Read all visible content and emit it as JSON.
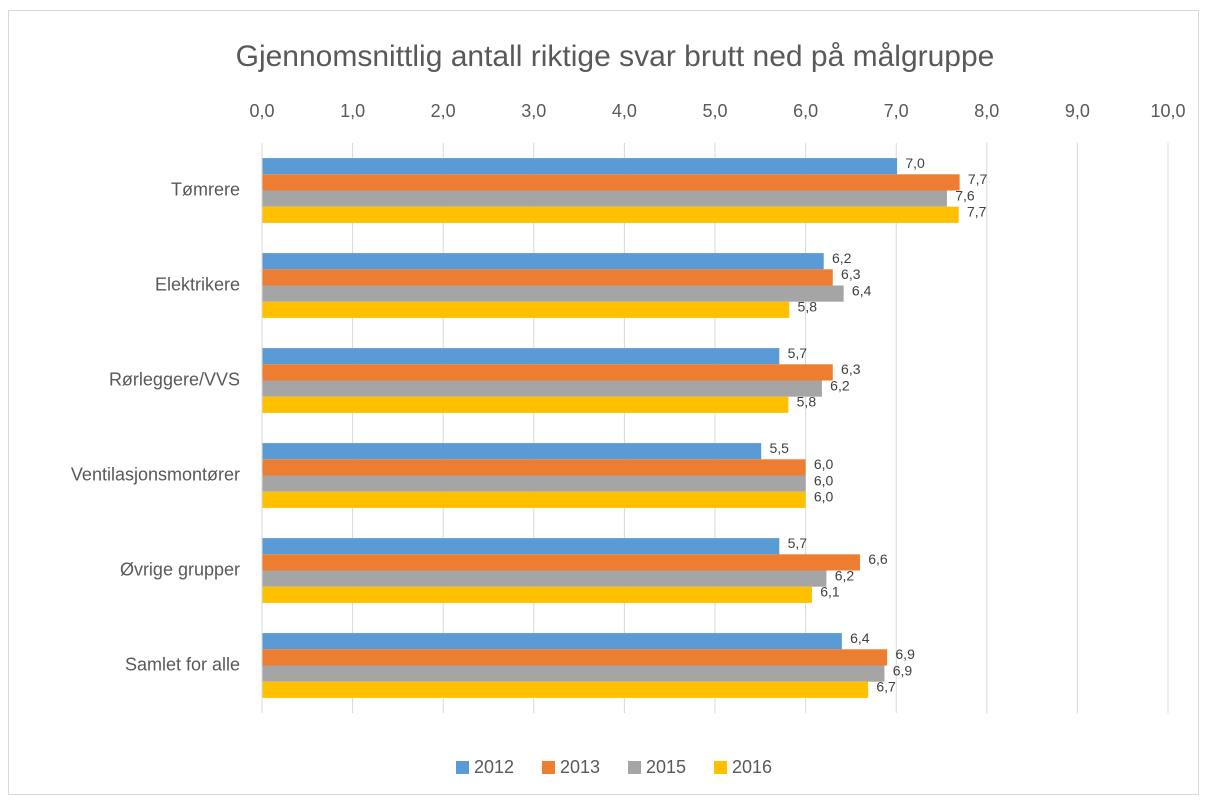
{
  "chart_data": {
    "type": "bar",
    "orientation": "horizontal",
    "title": "Gjennomsnittlig antall riktige svar brutt ned på målgruppe",
    "categories": [
      "Tømrere",
      "Elektrikere",
      "Rørleggere/VVS",
      "Ventilasjonsmontører",
      "Øvrige grupper",
      "Samlet for alle"
    ],
    "series": [
      {
        "name": "2012",
        "color": "#5b9bd5",
        "values": [
          7.01,
          6.2,
          5.71,
          5.51,
          5.71,
          6.4
        ],
        "value_labels": [
          "7,0",
          "6,2",
          "5,7",
          "5,5",
          "5,7",
          "6,4"
        ]
      },
      {
        "name": "2013",
        "color": "#ed7d31",
        "values": [
          7.7,
          6.3,
          6.3,
          6.0,
          6.6,
          6.9
        ],
        "value_labels": [
          "7,7",
          "6,3",
          "6,3",
          "6,0",
          "6,6",
          "6,9"
        ]
      },
      {
        "name": "2015",
        "color": "#a5a5a5",
        "values": [
          7.56,
          6.42,
          6.18,
          6.0,
          6.23,
          6.87
        ],
        "value_labels": [
          "7,6",
          "6,4",
          "6,2",
          "6,0",
          "6,2",
          "6,9"
        ]
      },
      {
        "name": "2016",
        "color": "#ffc000",
        "values": [
          7.69,
          5.82,
          5.81,
          6.0,
          6.07,
          6.69
        ],
        "value_labels": [
          "7,7",
          "5,8",
          "5,8",
          "6,0",
          "6,1",
          "6,7"
        ]
      }
    ],
    "xlim": [
      0,
      10
    ],
    "xticks": [
      {
        "value": 0,
        "label": "0,0"
      },
      {
        "value": 1,
        "label": "1,0"
      },
      {
        "value": 2,
        "label": "2,0"
      },
      {
        "value": 3,
        "label": "3,0"
      },
      {
        "value": 4,
        "label": "4,0"
      },
      {
        "value": 5,
        "label": "5,0"
      },
      {
        "value": 6,
        "label": "6,0"
      },
      {
        "value": 7,
        "label": "7,0"
      },
      {
        "value": 8,
        "label": "8,0"
      },
      {
        "value": 9,
        "label": "9,0"
      },
      {
        "value": 10,
        "label": "10,0"
      }
    ],
    "grid": true,
    "legend": "bottom"
  }
}
